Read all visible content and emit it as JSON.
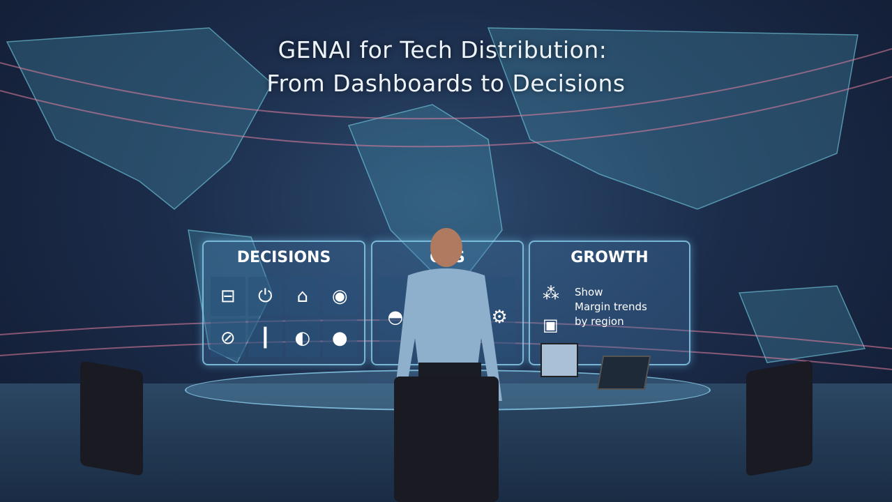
{
  "title": {
    "line1": "GENAI for Tech Distribution:",
    "line2": "From Dashboards to Decisions"
  },
  "panels": [
    {
      "title": "DECISIONS",
      "icons": [
        "handshake-icon",
        "power-icon",
        "shield-icon",
        "badge-icon",
        "target-icon",
        "bar-chart-icon",
        "globe-icon",
        "pin-icon"
      ]
    },
    {
      "title": "OPS",
      "icons": [
        "dome-icon",
        "gear-icon"
      ]
    },
    {
      "title": "GROWTH",
      "icons": [
        "network-icon",
        "person-icon"
      ],
      "text_lines": [
        "Show",
        "Margin trends",
        "by region"
      ]
    }
  ],
  "colors": {
    "background": "#1b2c4a",
    "panel_border": "#8cd2f0",
    "title": "#eef4fb"
  }
}
